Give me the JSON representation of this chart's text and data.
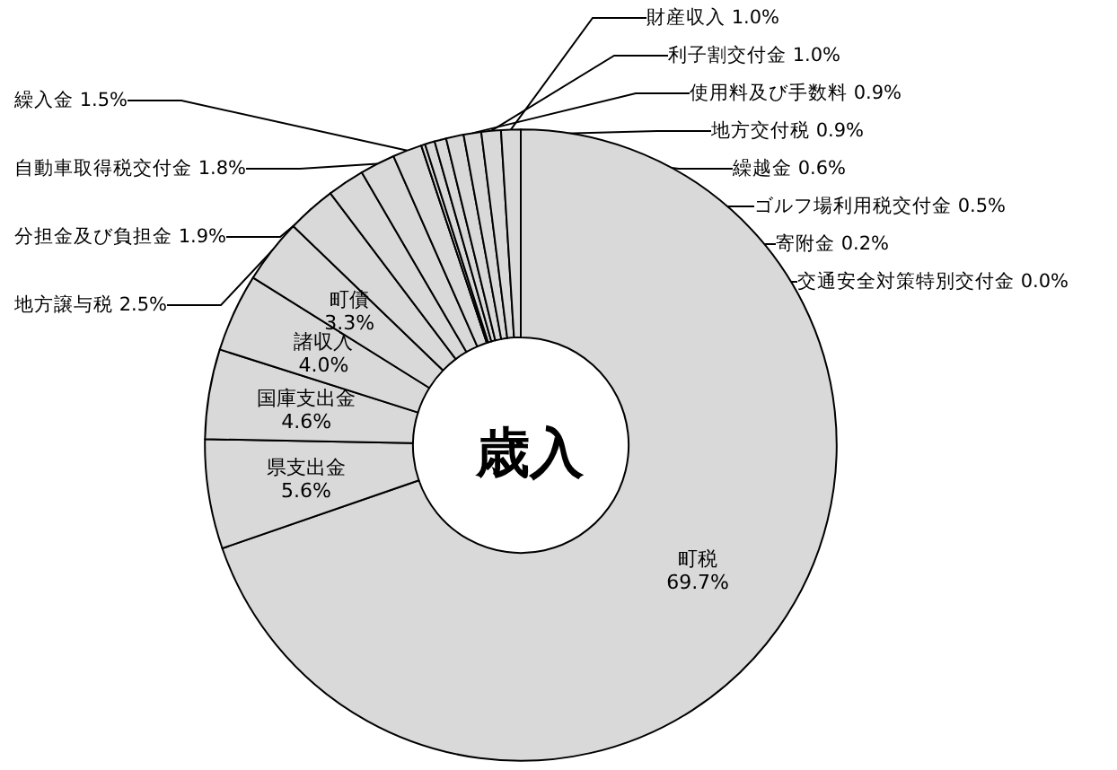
{
  "chart_data": {
    "type": "donut",
    "title": "歳入",
    "categories": [
      "町税",
      "県支出金",
      "国庫支出金",
      "諸収入",
      "町債",
      "地方譲与税",
      "分担金及び負担金",
      "自動車取得税交付金",
      "繰入金",
      "交通安全対策特別交付金",
      "寄附金",
      "ゴルフ場利用税交付金",
      "繰越金",
      "地方交付税",
      "使用料及び手数料",
      "利子割交付金",
      "財産収入"
    ],
    "values": [
      69.7,
      5.6,
      4.6,
      4.0,
      3.3,
      2.5,
      1.9,
      1.8,
      1.5,
      0.0,
      0.2,
      0.5,
      0.6,
      0.9,
      0.9,
      1.0,
      1.0
    ],
    "colors": [
      "#d9d9d9",
      "#d9d9d9",
      "#d9d9d9",
      "#d9d9d9",
      "#d9d9d9",
      "#d9d9d9",
      "#d9d9d9",
      "#d9d9d9",
      "#d9d9d9",
      "#d9d9d9",
      "#d9d9d9",
      "#d9d9d9",
      "#d9d9d9",
      "#d9d9d9",
      "#d9d9d9",
      "#d9d9d9",
      "#d9d9d9"
    ],
    "value_labels": [
      "69.7%",
      "5.6%",
      "4.6%",
      "4.0%",
      "3.3%",
      "2.5%",
      "1.9%",
      "1.8%",
      "1.5%",
      "0.0%",
      "0.2%",
      "0.5%",
      "0.6%",
      "0.9%",
      "0.9%",
      "1.0%",
      "1.0%"
    ],
    "legend": false
  }
}
